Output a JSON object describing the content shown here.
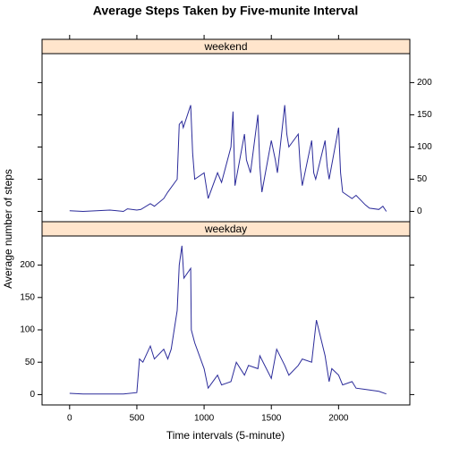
{
  "chart_data": {
    "type": "line",
    "title": "Average Steps Taken by Five-munite Interval",
    "xlabel": "Time intervals (5-minute)",
    "ylabel": "Average number of steps",
    "xlim": [
      -205,
      2530
    ],
    "xticks": [
      0,
      500,
      1000,
      1500,
      2000
    ],
    "ylim": [
      -16,
      245
    ],
    "yticks": [
      0,
      50,
      100,
      150,
      200
    ],
    "strip_color": "#ffe5cc",
    "series": [
      {
        "name": "weekend",
        "color": "#2b2b9a",
        "x": [
          0,
          100,
          200,
          300,
          400,
          430,
          500,
          530,
          600,
          630,
          700,
          730,
          800,
          815,
          835,
          845,
          900,
          915,
          930,
          1000,
          1030,
          1100,
          1130,
          1200,
          1215,
          1230,
          1300,
          1315,
          1345,
          1400,
          1415,
          1430,
          1500,
          1530,
          1545,
          1600,
          1615,
          1630,
          1700,
          1715,
          1730,
          1800,
          1815,
          1830,
          1900,
          1915,
          1930,
          2000,
          2015,
          2030,
          2100,
          2130,
          2200,
          2230,
          2300,
          2330,
          2355
        ],
        "values": [
          1,
          0,
          1,
          2,
          0,
          4,
          2,
          3,
          12,
          8,
          20,
          30,
          50,
          135,
          140,
          130,
          165,
          90,
          50,
          60,
          20,
          60,
          45,
          100,
          155,
          40,
          120,
          80,
          60,
          150,
          70,
          30,
          110,
          80,
          60,
          165,
          120,
          100,
          120,
          70,
          40,
          110,
          60,
          50,
          110,
          70,
          50,
          130,
          60,
          30,
          20,
          25,
          10,
          5,
          3,
          8,
          0
        ]
      },
      {
        "name": "weekday",
        "color": "#2b2b9a",
        "x": [
          0,
          100,
          200,
          300,
          400,
          500,
          520,
          545,
          600,
          630,
          700,
          730,
          755,
          800,
          815,
          835,
          850,
          900,
          905,
          930,
          1000,
          1030,
          1100,
          1130,
          1200,
          1240,
          1300,
          1330,
          1400,
          1415,
          1500,
          1540,
          1600,
          1630,
          1700,
          1730,
          1800,
          1835,
          1900,
          1930,
          1950,
          2000,
          2030,
          2100,
          2130,
          2200,
          2300,
          2355
        ],
        "values": [
          2,
          1,
          1,
          1,
          1,
          3,
          55,
          50,
          75,
          55,
          70,
          55,
          70,
          130,
          200,
          230,
          180,
          195,
          100,
          80,
          40,
          10,
          30,
          15,
          20,
          50,
          30,
          45,
          40,
          60,
          25,
          70,
          45,
          30,
          45,
          55,
          50,
          115,
          60,
          20,
          40,
          30,
          15,
          20,
          10,
          8,
          5,
          1
        ]
      }
    ]
  }
}
